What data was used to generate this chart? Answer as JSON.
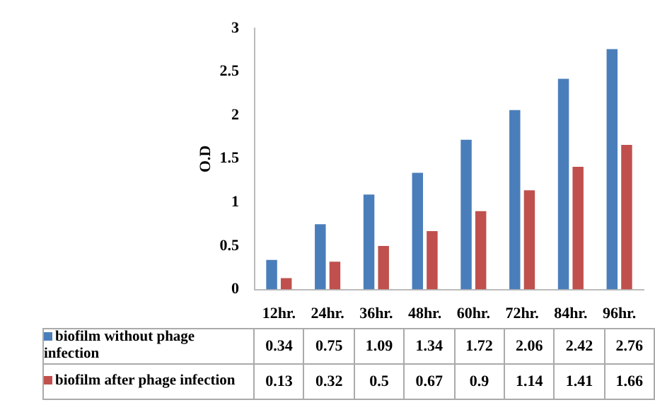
{
  "chart_data": {
    "type": "bar",
    "ylabel": "O.D",
    "categories": [
      "12hr.",
      "24hr.",
      "36hr.",
      "48hr.",
      "60hr.",
      "72hr.",
      "84hr.",
      "96hr."
    ],
    "series": [
      {
        "name": "biofilm without phage infection",
        "color": "#4a7ebb",
        "values": [
          0.34,
          0.75,
          1.09,
          1.34,
          1.72,
          2.06,
          2.42,
          2.76
        ]
      },
      {
        "name": "biofilm after phage infection",
        "color": "#c0504d",
        "values": [
          0.13,
          0.32,
          0.5,
          0.67,
          0.9,
          1.14,
          1.41,
          1.66
        ]
      }
    ],
    "ylim": [
      0,
      3
    ],
    "yticks": [
      0,
      0.5,
      1,
      1.5,
      2,
      2.5,
      3
    ],
    "grid": false,
    "legend": "bottom",
    "data_labels": true
  }
}
